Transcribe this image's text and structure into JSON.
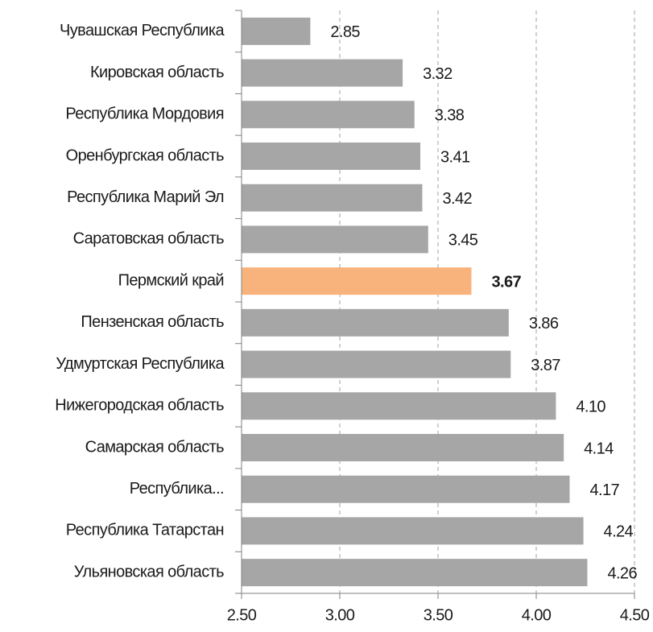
{
  "chart_data": {
    "type": "bar",
    "orientation": "horizontal",
    "categories": [
      "Чувашская Республика",
      "Кировская область",
      "Республика Мордовия",
      "Оренбургская область",
      "Республика Марий Эл",
      "Саратовская область",
      "Пермский край",
      "Пензенская область",
      "Удмуртская Республика",
      "Нижегородская область",
      "Самарская область",
      "Республика...",
      "Республика Татарстан",
      "Ульяновская область"
    ],
    "values": [
      2.85,
      3.32,
      3.38,
      3.41,
      3.42,
      3.45,
      3.67,
      3.86,
      3.87,
      4.1,
      4.14,
      4.17,
      4.24,
      4.26
    ],
    "value_labels": [
      "2.85",
      "3.32",
      "3.38",
      "3.41",
      "3.42",
      "3.45",
      "3.67",
      "3.86",
      "3.87",
      "4.10",
      "4.14",
      "4.17",
      "4.24",
      "4.26"
    ],
    "color": "#a6a6a6",
    "colors": [
      "#a6a6a6",
      "#a6a6a6",
      "#a6a6a6",
      "#a6a6a6",
      "#a6a6a6",
      "#a6a6a6",
      "#f8b37c",
      "#a6a6a6",
      "#a6a6a6",
      "#a6a6a6",
      "#a6a6a6",
      "#a6a6a6",
      "#a6a6a6",
      "#a6a6a6"
    ],
    "xlim": [
      2.5,
      4.5
    ],
    "xticks": [
      {
        "value": 2.5,
        "label": "2.50"
      },
      {
        "value": 3,
        "label": "3.00"
      },
      {
        "value": 3.5,
        "label": "3.50"
      },
      {
        "value": 4,
        "label": "4.00"
      },
      {
        "value": 4.5,
        "label": "4.50"
      }
    ],
    "grid": true
  }
}
